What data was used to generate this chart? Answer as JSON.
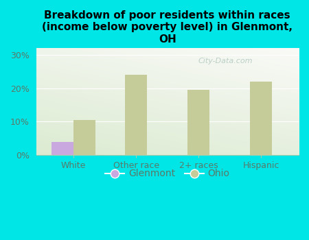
{
  "title": "Breakdown of poor residents within races\n(income below poverty level) in Glenmont,\nOH",
  "categories": [
    "White",
    "Other race",
    "2+ races",
    "Hispanic"
  ],
  "glenmont_values": [
    4.0,
    0.0,
    0.0,
    0.0
  ],
  "ohio_values": [
    10.5,
    24.0,
    19.5,
    22.0
  ],
  "glenmont_color": "#c9a8e0",
  "ohio_color": "#c5cc99",
  "background_color": "#00e5e5",
  "plot_bg_color_topleft": "#d8edd8",
  "plot_bg_color_topright": "#f0f5ee",
  "plot_bg_color_bottom": "#e8f4e0",
  "ylim": [
    0,
    32
  ],
  "yticks": [
    0,
    10,
    20,
    30
  ],
  "ytick_labels": [
    "0%",
    "10%",
    "20%",
    "30%"
  ],
  "bar_width": 0.35,
  "title_fontsize": 11,
  "axis_label_color": "#5a7a6a",
  "tick_label_color": "#5a7a6a",
  "legend_labels": [
    "Glenmont",
    "Ohio"
  ],
  "watermark": "City-Data.com",
  "watermark_color": "#b0c8c0",
  "grid_color": "#ffffff"
}
